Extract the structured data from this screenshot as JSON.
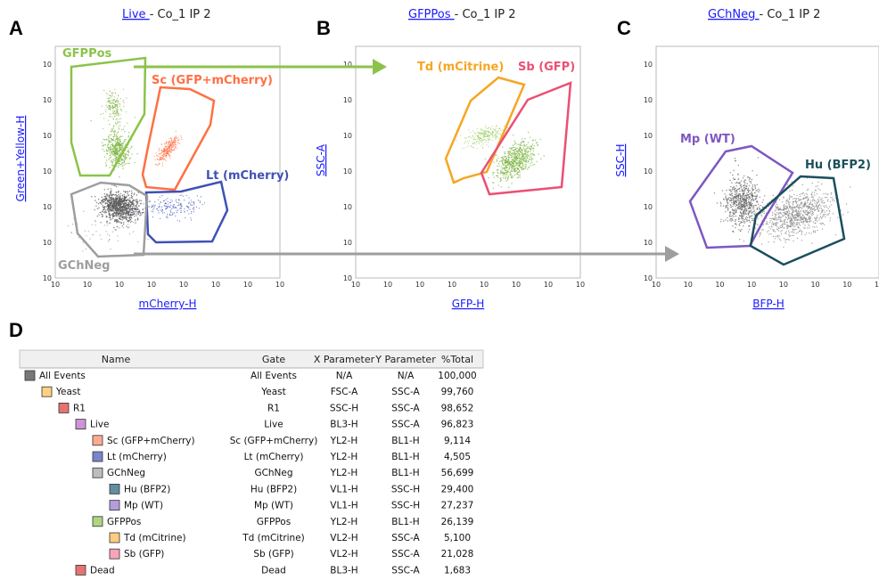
{
  "colors": {
    "gfppos": "#8bc34a",
    "sc": "#ff7043",
    "lt": "#3f51b5",
    "gchneg": "#9e9e9e",
    "td": "#f5a623",
    "sb": "#ec4f73",
    "mp": "#7e57c2",
    "hu": "#1b4f5c",
    "link": "#1a1aff"
  },
  "panels": [
    {
      "letter": "A",
      "title_link": "Live ",
      "title_rest": "- Co_1 IP 2",
      "xlabel": "mCherry-H",
      "ylabel": "Green+Yellow-H"
    },
    {
      "letter": "B",
      "title_link": "GFPPos ",
      "title_rest": "- Co_1 IP 2",
      "xlabel": "GFP-H",
      "ylabel": "SSC-A"
    },
    {
      "letter": "C",
      "title_link": "GChNeg ",
      "title_rest": "- Co_1 IP 2",
      "xlabel": "BFP-H",
      "ylabel": "SSC-H"
    }
  ],
  "gates": {
    "gfppos": "GFPPos",
    "sc": "Sc (GFP+mCherry)",
    "lt": "Lt (mCherry)",
    "gchneg": "GChNeg",
    "td": "Td (mCitrine)",
    "sb": "Sb (GFP)",
    "mp": "Mp (WT)",
    "hu": "Hu (BFP2)"
  },
  "panel_d": {
    "letter": "D"
  },
  "chart_data": [
    {
      "type": "scatter",
      "panel": "A",
      "title": "Live - Co_1 IP 2",
      "xlabel": "mCherry-H",
      "ylabel": "Green+Yellow-H",
      "log_scale": true,
      "populations": [
        "GFPPos",
        "Sc (GFP+mCherry)",
        "Lt (mCherry)",
        "GChNeg"
      ]
    },
    {
      "type": "scatter",
      "panel": "B",
      "title": "GFPPos - Co_1 IP 2",
      "xlabel": "GFP-H",
      "ylabel": "SSC-A",
      "log_scale": true,
      "populations": [
        "Td (mCitrine)",
        "Sb (GFP)"
      ]
    },
    {
      "type": "scatter",
      "panel": "C",
      "title": "GChNeg - Co_1 IP 2",
      "xlabel": "BFP-H",
      "ylabel": "SSC-H",
      "log_scale": true,
      "populations": [
        "Mp (WT)",
        "Hu (BFP2)"
      ]
    },
    {
      "type": "table",
      "panel": "D",
      "columns": [
        "Name",
        "Gate",
        "X Parameter",
        "Y Parameter",
        "%Total"
      ],
      "rows": [
        {
          "name": "All Events",
          "gate": "All Events",
          "x": "N/A",
          "y": "N/A",
          "total": "100,000",
          "indent": 0,
          "color": "#777777"
        },
        {
          "name": "Yeast",
          "gate": "Yeast",
          "x": "FSC-A",
          "y": "SSC-A",
          "total": "99,760",
          "indent": 1,
          "color": "#ffd180"
        },
        {
          "name": "R1",
          "gate": "R1",
          "x": "SSC-H",
          "y": "SSC-A",
          "total": "98,652",
          "indent": 2,
          "color": "#e57373"
        },
        {
          "name": "Live",
          "gate": "Live",
          "x": "BL3-H",
          "y": "SSC-A",
          "total": "96,823",
          "indent": 3,
          "color": "#ce93d8"
        },
        {
          "name": "Sc (GFP+mCherry)",
          "gate": "Sc (GFP+mCherry)",
          "x": "YL2-H",
          "y": "BL1-H",
          "total": "9,114",
          "indent": 4,
          "color": "#ffab91"
        },
        {
          "name": "Lt (mCherry)",
          "gate": "Lt (mCherry)",
          "x": "YL2-H",
          "y": "BL1-H",
          "total": "4,505",
          "indent": 4,
          "color": "#7986cb"
        },
        {
          "name": "GChNeg",
          "gate": "GChNeg",
          "x": "YL2-H",
          "y": "BL1-H",
          "total": "56,699",
          "indent": 4,
          "color": "#bdbdbd"
        },
        {
          "name": "Hu (BFP2)",
          "gate": "Hu (BFP2)",
          "x": "VL1-H",
          "y": "SSC-H",
          "total": "29,400",
          "indent": 5,
          "color": "#5f8fa0"
        },
        {
          "name": "Mp (WT)",
          "gate": "Mp (WT)",
          "x": "VL1-H",
          "y": "SSC-H",
          "total": "27,237",
          "indent": 5,
          "color": "#b39ddb"
        },
        {
          "name": "GFPPos",
          "gate": "GFPPos",
          "x": "YL2-H",
          "y": "BL1-H",
          "total": "26,139",
          "indent": 4,
          "color": "#aed581"
        },
        {
          "name": "Td (mCitrine)",
          "gate": "Td (mCitrine)",
          "x": "VL2-H",
          "y": "SSC-A",
          "total": "5,100",
          "indent": 5,
          "color": "#ffcc80"
        },
        {
          "name": "Sb (GFP)",
          "gate": "Sb (GFP)",
          "x": "VL2-H",
          "y": "SSC-A",
          "total": "21,028",
          "indent": 5,
          "color": "#f8a5b8"
        },
        {
          "name": "Dead",
          "gate": "Dead",
          "x": "BL3-H",
          "y": "SSC-A",
          "total": "1,683",
          "indent": 3,
          "color": "#e57373"
        }
      ]
    }
  ]
}
